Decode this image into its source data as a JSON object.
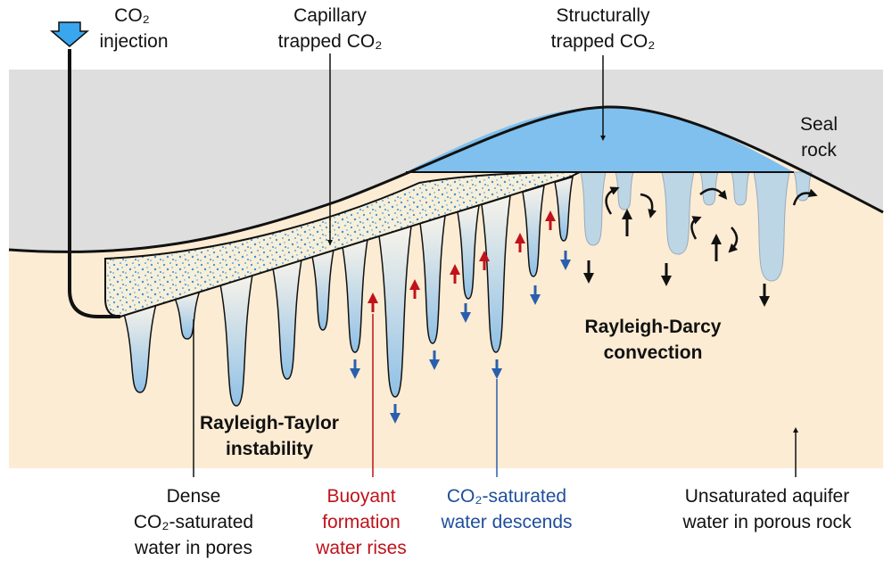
{
  "labels": {
    "co2_injection": [
      "CO₂",
      "injection"
    ],
    "capillary": [
      "Capillary",
      "trapped CO₂"
    ],
    "structural": [
      "Structurally",
      "trapped CO₂"
    ],
    "seal": [
      "Seal",
      "rock"
    ],
    "rayleigh_darcy": [
      "Rayleigh-Darcy",
      "convection"
    ],
    "rayleigh_taylor": [
      "Rayleigh-Taylor",
      "instability"
    ],
    "dense": [
      "Dense",
      "CO₂-saturated",
      "water in pores"
    ],
    "buoyant": [
      "Buoyant",
      "formation",
      "water rises"
    ],
    "descends": [
      "CO₂-saturated",
      "water descends"
    ],
    "unsaturated": [
      "Unsaturated aquifer",
      "water in porous rock"
    ]
  }
}
